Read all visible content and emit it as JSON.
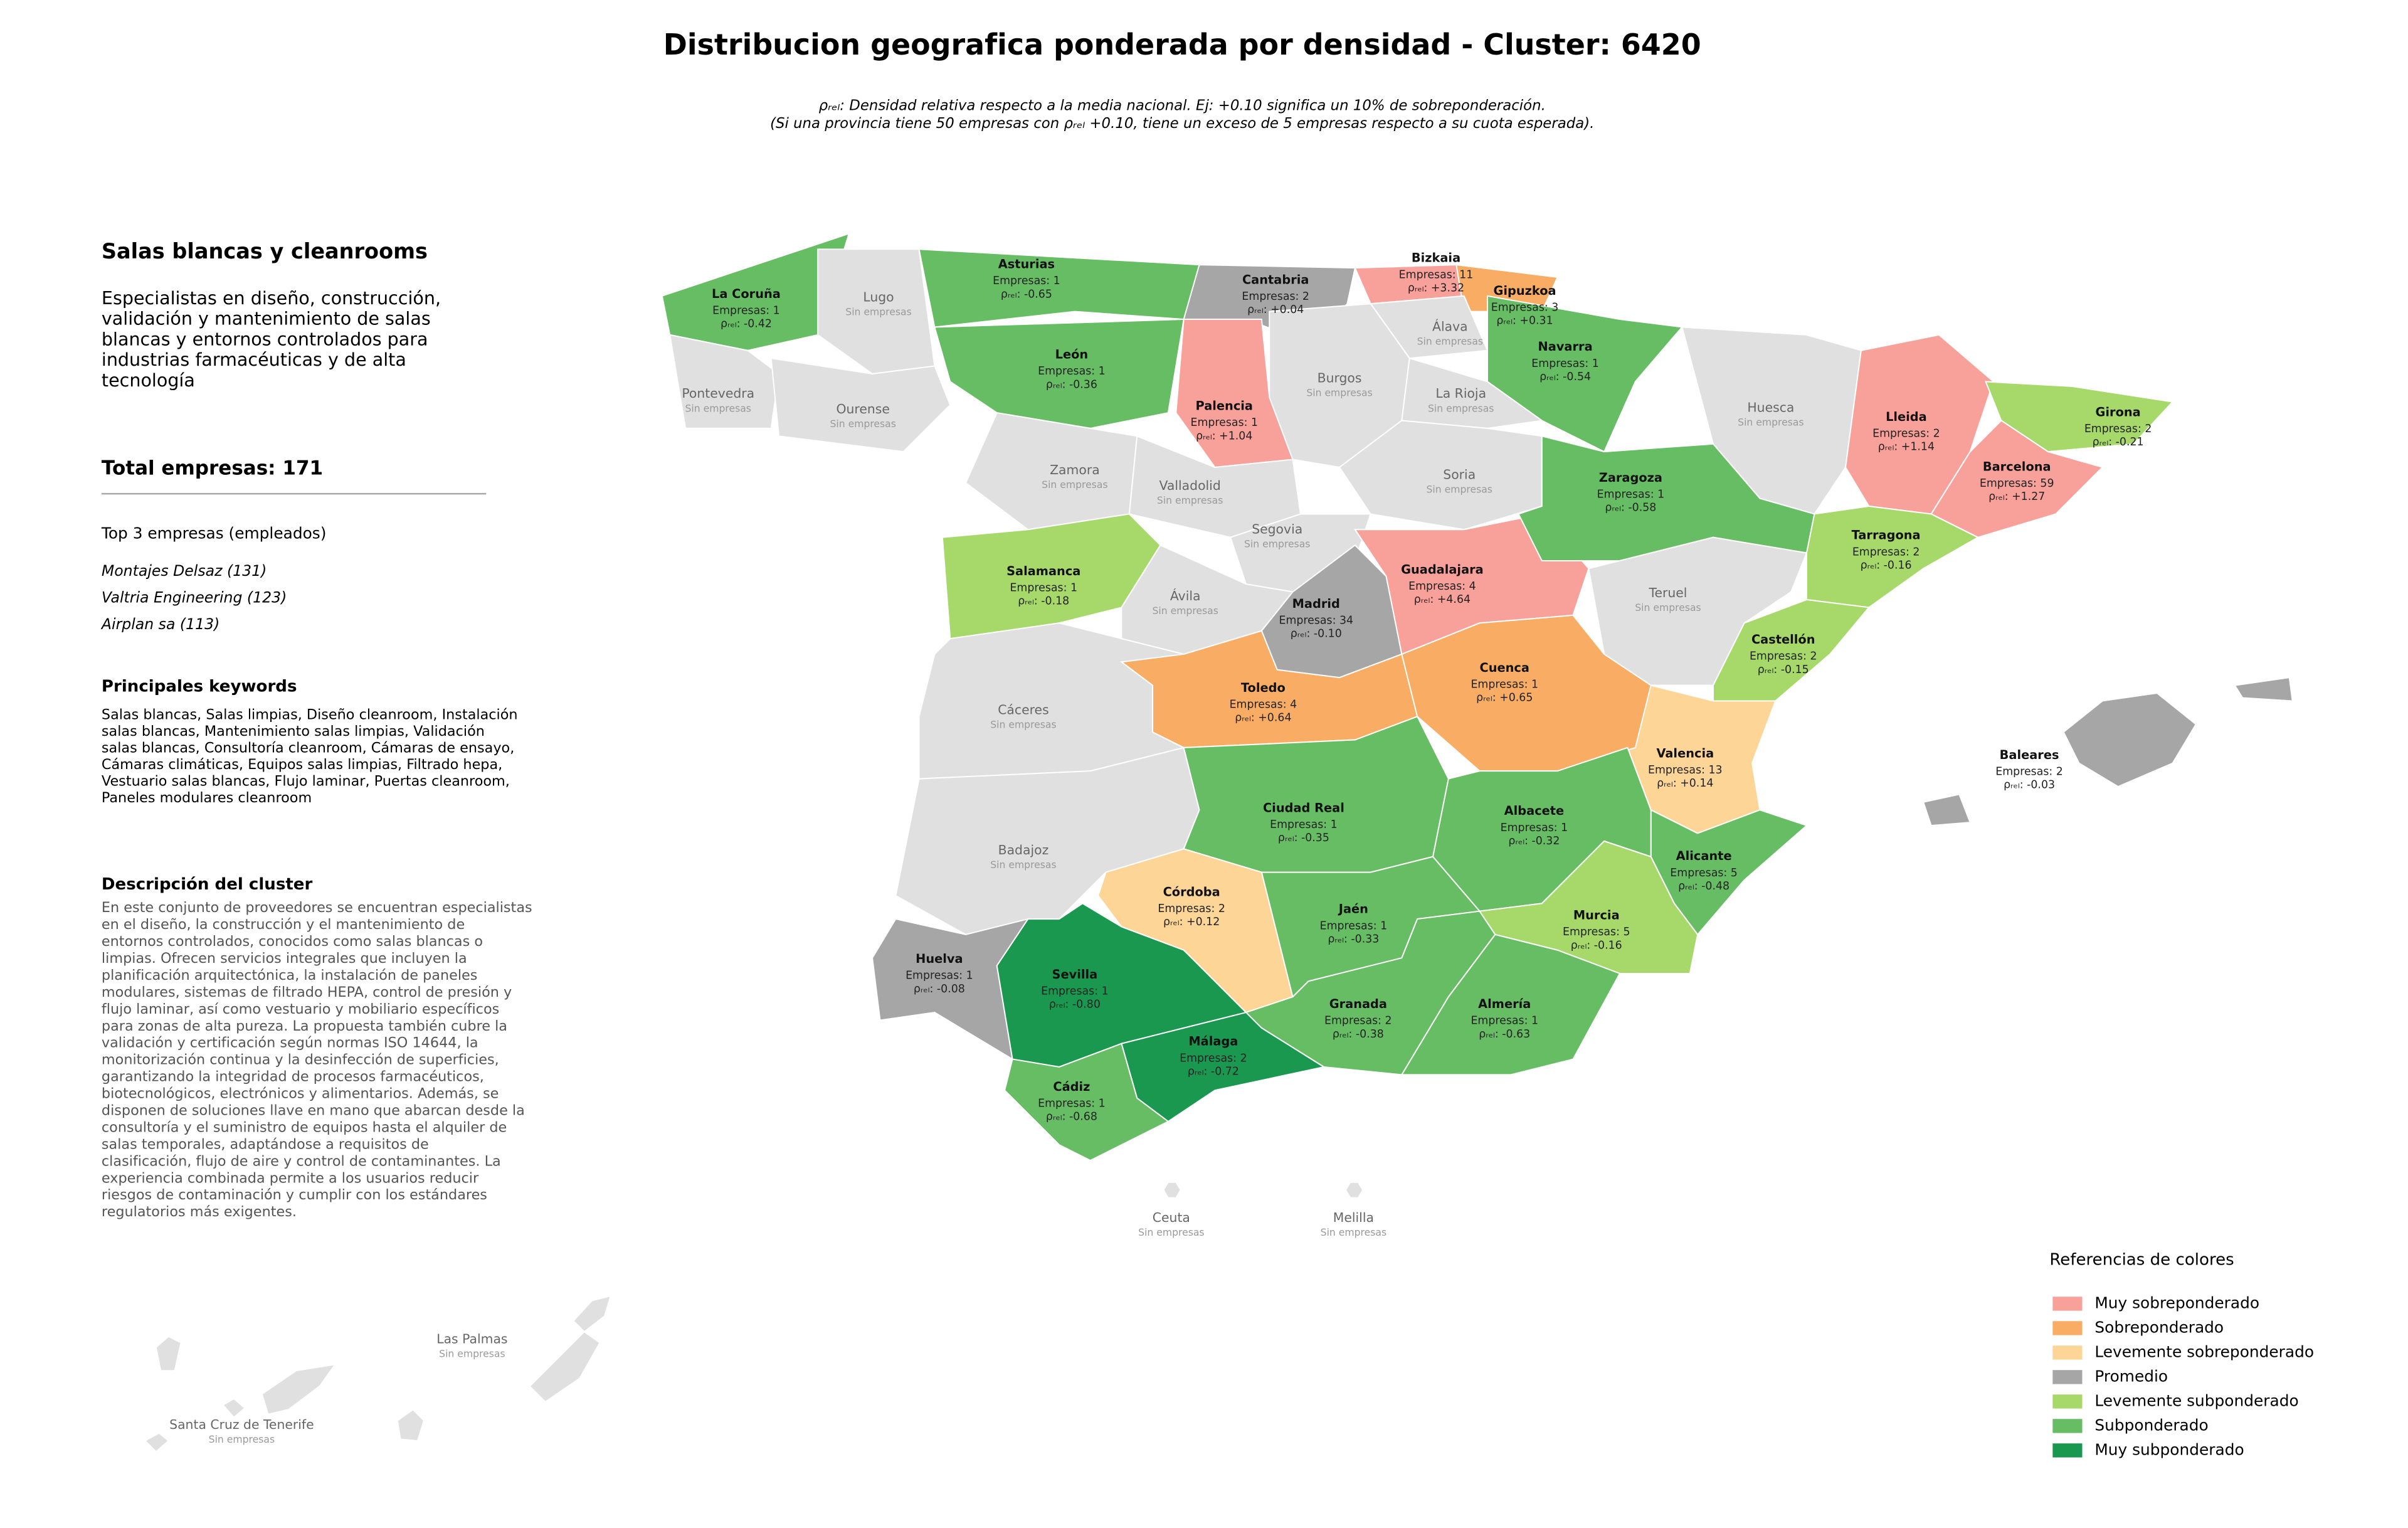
{
  "title": "Distribucion geografica ponderada por densidad - Cluster: 6420",
  "subtitle": [
    "ρᵣₑₗ: Densidad relativa respecto a la media nacional. Ej: +0.10 significa un 10% de sobreponderación.",
    "(Si una provincia tiene 50 empresas con ρᵣₑₗ +0.10, tiene un exceso de 5 empresas respecto a su cuota esperada)."
  ],
  "sidebar": {
    "heading": "Salas blancas y cleanrooms",
    "description": [
      "Especialistas en diseño, construcción,",
      "validación y mantenimiento de salas",
      "blancas y entornos controlados para",
      "industrias farmacéuticas y de alta",
      "tecnología"
    ],
    "total": "Total empresas: 171",
    "top_heading": "Top 3 empresas (empleados)",
    "top_companies": [
      "Montajes Delsaz (131)",
      "Valtria Engineering (123)",
      "Airplan sa (113)"
    ],
    "keywords_heading": "Principales keywords",
    "keywords": [
      "Salas blancas, Salas limpias, Diseño cleanroom, Instalación",
      "salas blancas, Mantenimiento salas limpias, Validación",
      "salas blancas, Consultoría cleanroom, Cámaras de ensayo,",
      "Cámaras climáticas, Equipos salas limpias, Filtrado hepa,",
      "Vestuario salas blancas, Flujo laminar, Puertas cleanroom,",
      "Paneles modulares cleanroom"
    ],
    "cluster_heading": "Descripción del cluster",
    "cluster_description": [
      "En este conjunto de proveedores se encuentran especialistas",
      "en el diseño, la construcción y el mantenimiento de",
      "entornos controlados, conocidos como salas blancas o",
      "limpias. Ofrecen servicios integrales que incluyen la",
      "planificación arquitectónica, la instalación de paneles",
      "modulares, sistemas de filtrado HEPA, control de presión y",
      "flujo laminar, así como vestuario y mobiliario específicos",
      "para zonas de alta pureza. La propuesta también cubre la",
      "validación y certificación según normas ISO 14644, la",
      "monitorización continua y la desinfección de superficies,",
      "garantizando la integridad de procesos farmacéuticos,",
      "biotecnológicos, electrónicos y alimentarios. Además, se",
      "disponen de soluciones llave en mano que abarcan desde la",
      "consultoría y el suministro de equipos hasta el alquiler de",
      "salas temporales, adaptándose a requisitos de",
      "clasificación, flujo de aire y control de contaminantes. La",
      "experiencia combinada permite a los usuarios reducir",
      "riesgos de contaminación y cumplir con los estándares",
      "regulatorios más exigentes."
    ]
  },
  "provinces": [
    {
      "name": "La Coruña",
      "companies": "Empresas: 1",
      "rho": "ρᵣₑₗ: -0.42",
      "color": "#66bd63"
    },
    {
      "name": "Lugo",
      "note": "Sin empresas",
      "color": "#e0e0e0"
    },
    {
      "name": "Pontevedra",
      "note": "Sin empresas",
      "color": "#e0e0e0"
    },
    {
      "name": "Ourense",
      "note": "Sin empresas",
      "color": "#e0e0e0"
    },
    {
      "name": "Asturias",
      "companies": "Empresas: 1",
      "rho": "ρᵣₑₗ: -0.65",
      "color": "#66bd63"
    },
    {
      "name": "Cantabria",
      "companies": "Empresas: 2",
      "rho": "ρᵣₑₗ: +0.04",
      "color": "#a6a6a6"
    },
    {
      "name": "Bizkaia",
      "companies": "Empresas: 11",
      "rho": "ρᵣₑₗ: +3.32",
      "color": "#f8a19b"
    },
    {
      "name": "Gipuzkoa",
      "companies": "Empresas: 3",
      "rho": "ρᵣₑₗ: +0.31",
      "color": "#f9ad64"
    },
    {
      "name": "Álava",
      "note": "Sin empresas",
      "color": "#e0e0e0"
    },
    {
      "name": "Navarra",
      "companies": "Empresas: 1",
      "rho": "ρᵣₑₗ: -0.54",
      "color": "#66bd63"
    },
    {
      "name": "León",
      "companies": "Empresas: 1",
      "rho": "ρᵣₑₗ: -0.36",
      "color": "#66bd63"
    },
    {
      "name": "Palencia",
      "companies": "Empresas: 1",
      "rho": "ρᵣₑₗ: +1.04",
      "color": "#f8a19b"
    },
    {
      "name": "Burgos",
      "note": "Sin empresas",
      "color": "#e0e0e0"
    },
    {
      "name": "La Rioja",
      "note": "Sin empresas",
      "color": "#e0e0e0"
    },
    {
      "name": "Zamora",
      "note": "Sin empresas",
      "color": "#e0e0e0"
    },
    {
      "name": "Valladolid",
      "note": "Sin empresas",
      "color": "#e0e0e0"
    },
    {
      "name": "Soria",
      "note": "Sin empresas",
      "color": "#e0e0e0"
    },
    {
      "name": "Segovia",
      "note": "Sin empresas",
      "color": "#e0e0e0"
    },
    {
      "name": "Salamanca",
      "companies": "Empresas: 1",
      "rho": "ρᵣₑₗ: -0.18",
      "color": "#a6d96a"
    },
    {
      "name": "Ávila",
      "note": "Sin empresas",
      "color": "#e0e0e0"
    },
    {
      "name": "Madrid",
      "companies": "Empresas: 34",
      "rho": "ρᵣₑₗ: -0.10",
      "color": "#a6a6a6"
    },
    {
      "name": "Guadalajara",
      "companies": "Empresas: 4",
      "rho": "ρᵣₑₗ: +4.64",
      "color": "#f8a19b"
    },
    {
      "name": "Huesca",
      "note": "Sin empresas",
      "color": "#e0e0e0"
    },
    {
      "name": "Zaragoza",
      "companies": "Empresas: 1",
      "rho": "ρᵣₑₗ: -0.58",
      "color": "#66bd63"
    },
    {
      "name": "Teruel",
      "note": "Sin empresas",
      "color": "#e0e0e0"
    },
    {
      "name": "Lleida",
      "companies": "Empresas: 2",
      "rho": "ρᵣₑₗ: +1.14",
      "color": "#f8a19b"
    },
    {
      "name": "Girona",
      "companies": "Empresas: 2",
      "rho": "ρᵣₑₗ: -0.21",
      "color": "#a6d96a"
    },
    {
      "name": "Barcelona",
      "companies": "Empresas: 59",
      "rho": "ρᵣₑₗ: +1.27",
      "color": "#f8a19b"
    },
    {
      "name": "Tarragona",
      "companies": "Empresas: 2",
      "rho": "ρᵣₑₗ: -0.16",
      "color": "#a6d96a"
    },
    {
      "name": "Castellón",
      "companies": "Empresas: 2",
      "rho": "ρᵣₑₗ: -0.15",
      "color": "#a6d96a"
    },
    {
      "name": "Valencia",
      "companies": "Empresas: 13",
      "rho": "ρᵣₑₗ: +0.14",
      "color": "#fdd597"
    },
    {
      "name": "Alicante",
      "companies": "Empresas: 5",
      "rho": "ρᵣₑₗ: -0.48",
      "color": "#66bd63"
    },
    {
      "name": "Cáceres",
      "note": "Sin empresas",
      "color": "#e0e0e0"
    },
    {
      "name": "Badajoz",
      "note": "Sin empresas",
      "color": "#e0e0e0"
    },
    {
      "name": "Toledo",
      "companies": "Empresas: 4",
      "rho": "ρᵣₑₗ: +0.64",
      "color": "#f9ad64"
    },
    {
      "name": "Cuenca",
      "companies": "Empresas: 1",
      "rho": "ρᵣₑₗ: +0.65",
      "color": "#f9ad64"
    },
    {
      "name": "Ciudad Real",
      "companies": "Empresas: 1",
      "rho": "ρᵣₑₗ: -0.35",
      "color": "#66bd63"
    },
    {
      "name": "Albacete",
      "companies": "Empresas: 1",
      "rho": "ρᵣₑₗ: -0.32",
      "color": "#66bd63"
    },
    {
      "name": "Murcia",
      "companies": "Empresas: 5",
      "rho": "ρᵣₑₗ: -0.16",
      "color": "#a6d96a"
    },
    {
      "name": "Córdoba",
      "companies": "Empresas: 2",
      "rho": "ρᵣₑₗ: +0.12",
      "color": "#fdd597"
    },
    {
      "name": "Jaén",
      "companies": "Empresas: 1",
      "rho": "ρᵣₑₗ: -0.33",
      "color": "#66bd63"
    },
    {
      "name": "Granada",
      "companies": "Empresas: 2",
      "rho": "ρᵣₑₗ: -0.38",
      "color": "#66bd63"
    },
    {
      "name": "Almería",
      "companies": "Empresas: 1",
      "rho": "ρᵣₑₗ: -0.63",
      "color": "#66bd63"
    },
    {
      "name": "Huelva",
      "companies": "Empresas: 1",
      "rho": "ρᵣₑₗ: -0.08",
      "color": "#a6a6a6"
    },
    {
      "name": "Sevilla",
      "companies": "Empresas: 1",
      "rho": "ρᵣₑₗ: -0.80",
      "color": "#1a9850"
    },
    {
      "name": "Málaga",
      "companies": "Empresas: 2",
      "rho": "ρᵣₑₗ: -0.72",
      "color": "#1a9850"
    },
    {
      "name": "Cádiz",
      "companies": "Empresas: 1",
      "rho": "ρᵣₑₗ: -0.68",
      "color": "#66bd63"
    },
    {
      "name": "Baleares",
      "companies": "Empresas: 2",
      "rho": "ρᵣₑₗ: -0.03",
      "color": "#a6a6a6"
    },
    {
      "name": "Ceuta",
      "note": "Sin empresas",
      "color": "#e0e0e0"
    },
    {
      "name": "Melilla",
      "note": "Sin empresas",
      "color": "#e0e0e0"
    },
    {
      "name": "Las Palmas",
      "note": "Sin empresas",
      "color": "#e0e0e0"
    },
    {
      "name": "Santa Cruz de Tenerife",
      "note": "Sin empresas",
      "color": "#e0e0e0"
    }
  ],
  "legend": {
    "title": "Referencias de colores",
    "items": [
      {
        "label": "Muy sobreponderado",
        "color": "#f8a19b"
      },
      {
        "label": "Sobreponderado",
        "color": "#f9ad64"
      },
      {
        "label": "Levemente sobreponderado",
        "color": "#fdd597"
      },
      {
        "label": "Promedio",
        "color": "#a6a6a6"
      },
      {
        "label": "Levemente subponderado",
        "color": "#a6d96a"
      },
      {
        "label": "Subponderado",
        "color": "#66bd63"
      },
      {
        "label": "Muy subponderado",
        "color": "#1a9850"
      }
    ]
  }
}
